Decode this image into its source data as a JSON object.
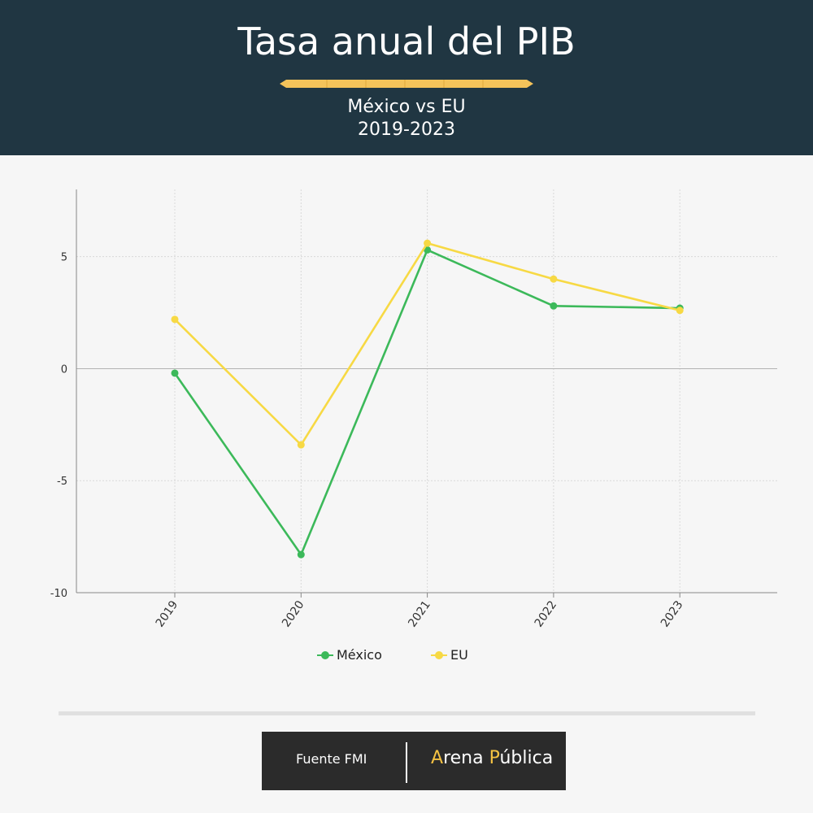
{
  "header": {
    "title": "Tasa anual del PIB",
    "subtitle_line1": "México vs EU",
    "subtitle_line2": "2019-2023"
  },
  "chart_data": {
    "type": "line",
    "title": "Tasa anual del PIB",
    "subtitle": "México vs EU 2019-2023",
    "categories": [
      "2019",
      "2020",
      "2021",
      "2022",
      "2023"
    ],
    "series": [
      {
        "name": "México",
        "color": "#3cb95a",
        "values": [
          -0.2,
          -8.3,
          5.3,
          2.8,
          2.7
        ]
      },
      {
        "name": "EU",
        "color": "#f7d944",
        "values": [
          2.2,
          -3.4,
          5.6,
          4.0,
          2.6
        ]
      }
    ],
    "ylim": [
      -10,
      8
    ],
    "yticks": [
      -10,
      -5,
      0,
      5
    ],
    "ytick_labels": [
      "-10",
      "-5",
      "0",
      "5"
    ],
    "grid": true,
    "legend": "bottom-center"
  },
  "footer": {
    "source": "Fuente FMI",
    "brand_a": "A",
    "brand_rena": "rena ",
    "brand_p": "P",
    "brand_ublica": "ública"
  }
}
